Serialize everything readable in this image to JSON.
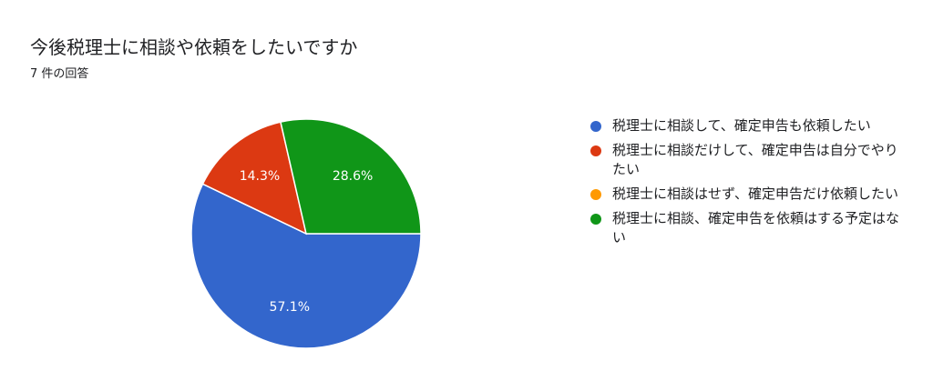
{
  "title": "今後税理士に相談や依頼をしたいですか",
  "subtitle": "7 件の回答",
  "chart_data": {
    "type": "pie",
    "categories": [
      "税理士に相談して、確定申告も依頼したい",
      "税理士に相談だけして、確定申告は自分でやりたい",
      "税理士に相談はせず、確定申告だけ依頼したい",
      "税理士に相談、確定申告を依頼はする予定はない"
    ],
    "values": [
      4,
      1,
      0,
      2
    ],
    "percent_labels": [
      "57.1%",
      "14.3%",
      "",
      "28.6%"
    ],
    "colors": [
      "#3366cc",
      "#dc3912",
      "#ff9900",
      "#109618"
    ],
    "legend_position": "right"
  }
}
